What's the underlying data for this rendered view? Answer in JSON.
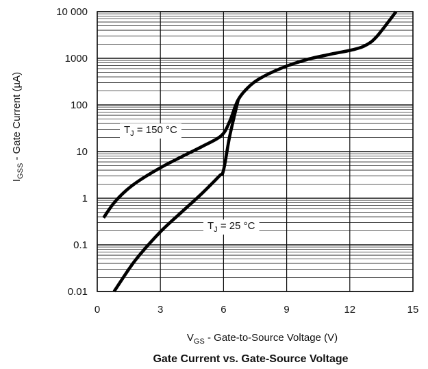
{
  "chart_data": {
    "type": "line",
    "title": "Gate Current vs. Gate-Source Voltage",
    "xlabel": {
      "main": "V",
      "sub": "GS",
      "rest": " - Gate-to-Source Voltage (V)"
    },
    "ylabel": {
      "main": "I",
      "sub": "GSS",
      "rest": " - Gate Current (µA)"
    },
    "xlim": [
      0,
      15
    ],
    "ylim": [
      0.01,
      10000
    ],
    "yscale": "log",
    "grid": true,
    "x_ticks": [
      {
        "value": 0,
        "label": "0"
      },
      {
        "value": 3,
        "label": "3"
      },
      {
        "value": 6,
        "label": "6"
      },
      {
        "value": 9,
        "label": "9"
      },
      {
        "value": 12,
        "label": "12"
      },
      {
        "value": 15,
        "label": "15"
      }
    ],
    "y_ticks": [
      {
        "value": 0.01,
        "label": "0.01"
      },
      {
        "value": 0.1,
        "label": "0.1"
      },
      {
        "value": 1,
        "label": "1"
      },
      {
        "value": 10,
        "label": "10"
      },
      {
        "value": 100,
        "label": "100"
      },
      {
        "value": 1000,
        "label": "1000"
      },
      {
        "value": 10000,
        "label": "10 000"
      }
    ],
    "series": [
      {
        "name": {
          "main": "T",
          "sub": "J",
          "rest": " = 150 °C"
        },
        "x": [
          0.3,
          0.8,
          1.4,
          2.0,
          3.0,
          4.0,
          5.0,
          5.9,
          6.3,
          6.7,
          7.3,
          8.0,
          9.0,
          10.0,
          11.0,
          12.2,
          12.8,
          13.3,
          14.2
        ],
        "y": [
          0.38,
          0.8,
          1.5,
          2.4,
          4.5,
          7.7,
          13,
          22,
          45,
          130,
          270,
          430,
          680,
          950,
          1200,
          1550,
          1950,
          3000,
          10000
        ]
      },
      {
        "name": {
          "main": "T",
          "sub": "J",
          "rest": " = 25 °C"
        },
        "x": [
          0.8,
          1.5,
          2.0,
          3.0,
          4.0,
          5.0,
          5.8,
          6.0,
          6.3,
          6.7
        ],
        "y": [
          0.01,
          0.03,
          0.06,
          0.19,
          0.5,
          1.3,
          3.0,
          4.0,
          22,
          130
        ]
      }
    ]
  }
}
